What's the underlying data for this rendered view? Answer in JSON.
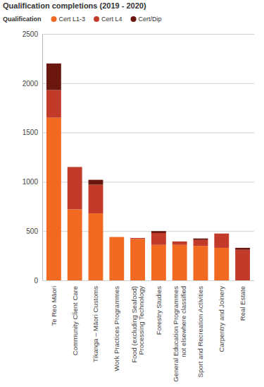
{
  "chart_data": {
    "type": "bar",
    "title": "Qualification completions (2019 - 2020)",
    "legend_title": "Qualification",
    "categories": [
      "Te Reo Māori",
      "Community Client Care",
      "Tikanga – Māori Customs",
      "Work Practices Programmes",
      "Food (excluding Seafood) Processing Technology",
      "Forestry Studies",
      "General Education Programmes not elsewhere classified",
      "Sport and Recreation Activities",
      "Carpentry and Joinery",
      "Real Estate"
    ],
    "series": [
      {
        "name": "Cert L1-3",
        "color": "#f26a21",
        "values": [
          1650,
          720,
          680,
          440,
          420,
          360,
          360,
          350,
          330,
          0
        ]
      },
      {
        "name": "Cert L4",
        "color": "#c23b2a",
        "values": [
          280,
          430,
          290,
          0,
          10,
          120,
          35,
          60,
          145,
          310
        ]
      },
      {
        "name": "Cert/Dip",
        "color": "#6b1710",
        "values": [
          270,
          0,
          50,
          0,
          0,
          20,
          0,
          15,
          0,
          20
        ]
      }
    ],
    "stacked": true,
    "ylim": [
      0,
      2500
    ],
    "yticks": [
      0,
      500,
      1000,
      1500,
      2000,
      2500
    ],
    "grid": true,
    "legend": "top-left"
  }
}
